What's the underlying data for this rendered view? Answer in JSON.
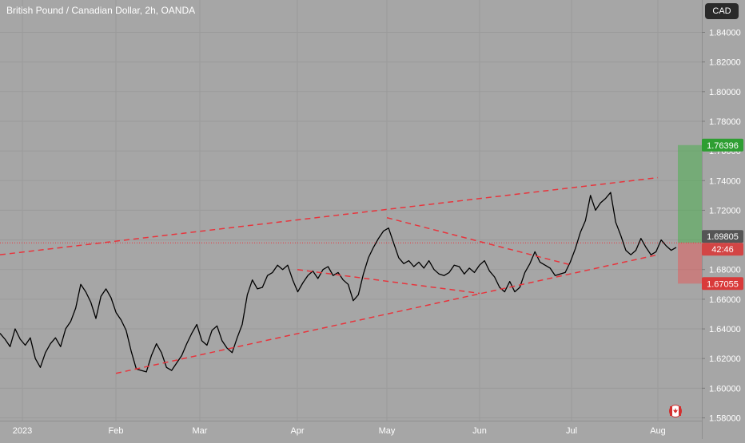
{
  "chart": {
    "title": "British Pound / Canadian Dollar, 2h, OANDA",
    "currency_button": "CAD"
  },
  "chart_data": {
    "type": "line",
    "symbol": "GBPCAD",
    "timeframe": "2h",
    "source": "OANDA",
    "x_labels": [
      "2023",
      "Feb",
      "Mar",
      "Apr",
      "May",
      "Jun",
      "Jul",
      "Aug"
    ],
    "y_ticks": [
      "1.84000",
      "1.82000",
      "1.80000",
      "1.78000",
      "1.76000",
      "1.74000",
      "1.72000",
      "1.70000",
      "1.68000",
      "1.66000",
      "1.64000",
      "1.62000",
      "1.60000",
      "1.58000"
    ],
    "ylim": [
      1.578,
      1.848
    ],
    "series": [
      {
        "values": [
          1.637,
          1.633,
          1.628,
          1.64,
          1.633,
          1.629,
          1.634,
          1.62,
          1.614,
          1.624,
          1.63,
          1.634,
          1.628,
          1.64,
          1.645,
          1.654,
          1.67,
          1.665,
          1.658,
          1.647,
          1.662,
          1.667,
          1.661,
          1.651,
          1.646,
          1.639,
          1.625,
          1.613,
          1.612,
          1.611,
          1.622,
          1.63,
          1.624,
          1.614,
          1.612,
          1.617,
          1.622,
          1.63,
          1.637,
          1.643,
          1.632,
          1.629,
          1.639,
          1.642,
          1.632,
          1.627,
          1.624,
          1.634,
          1.643,
          1.663,
          1.673,
          1.667,
          1.668,
          1.676,
          1.678,
          1.683,
          1.68,
          1.683,
          1.673,
          1.665,
          1.671,
          1.676,
          1.679,
          1.674,
          1.68,
          1.682,
          1.676,
          1.678,
          1.673,
          1.67,
          1.659,
          1.663,
          1.677,
          1.688,
          1.695,
          1.701,
          1.706,
          1.708,
          1.698,
          1.688,
          1.684,
          1.686,
          1.682,
          1.685,
          1.681,
          1.686,
          1.68,
          1.677,
          1.676,
          1.678,
          1.683,
          1.682,
          1.677,
          1.681,
          1.678,
          1.683,
          1.686,
          1.679,
          1.675,
          1.668,
          1.665,
          1.672,
          1.665,
          1.668,
          1.678,
          1.684,
          1.692,
          1.685,
          1.683,
          1.681,
          1.676,
          1.677,
          1.678,
          1.685,
          1.694,
          1.705,
          1.713,
          1.73,
          1.72,
          1.725,
          1.728,
          1.732,
          1.712,
          1.703,
          1.693,
          1.69,
          1.693,
          1.701,
          1.695,
          1.69,
          1.692,
          1.7,
          1.696,
          1.693,
          1.695
        ],
        "first_date": "Jan 2023",
        "last_value": 1.69805
      }
    ],
    "trend_lines": [
      {
        "x": [
          "start",
          "Aug"
        ],
        "y": [
          1.69,
          1.742
        ]
      },
      {
        "x": [
          "Feb",
          "Aug"
        ],
        "y": [
          1.61,
          1.69
        ]
      },
      {
        "x": [
          "Apr",
          "Jun"
        ],
        "y": [
          1.68,
          1.664
        ]
      },
      {
        "x": [
          "May",
          "Jul"
        ],
        "y": [
          1.715,
          1.683
        ]
      }
    ],
    "position": {
      "entry": 1.69805,
      "target": 1.76396,
      "stop": 1.67055
    },
    "labels": {
      "target": "1.76396",
      "current": "1.69805",
      "countdown": "42:46",
      "stop": "1.67055"
    },
    "colors": {
      "background": "#a6a6a6",
      "price_line": "#000000",
      "trend_line": "#e8343c",
      "target_zone": "#4caf50",
      "stop_zone": "#e05f5f",
      "current_tag": "#555555"
    },
    "grid": true
  }
}
